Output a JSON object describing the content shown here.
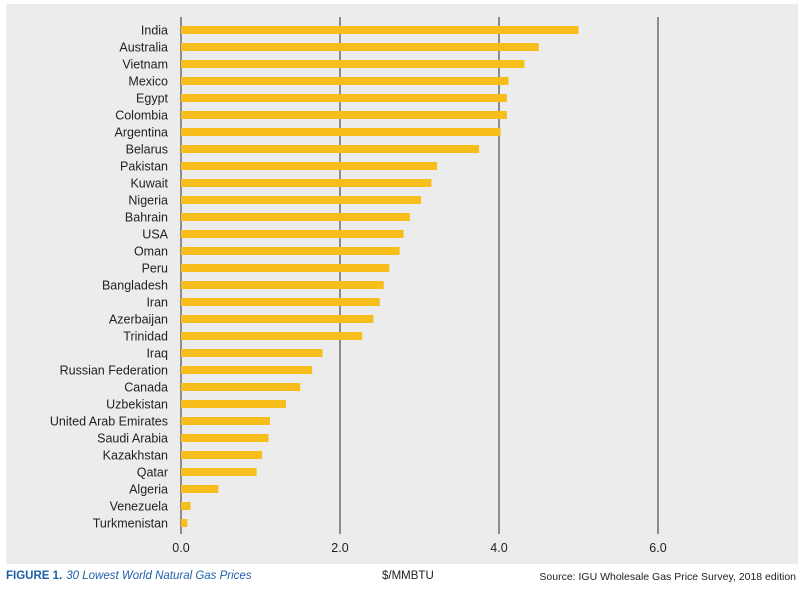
{
  "chart_data": {
    "type": "bar",
    "orientation": "horizontal",
    "categories": [
      "India",
      "Australia",
      "Vietnam",
      "Mexico",
      "Egypt",
      "Colombia",
      "Argentina",
      "Belarus",
      "Pakistan",
      "Kuwait",
      "Nigeria",
      "Bahrain",
      "USA",
      "Oman",
      "Peru",
      "Bangladesh",
      "Iran",
      "Azerbaijan",
      "Trinidad",
      "Iraq",
      "Russian Federation",
      "Canada",
      "Uzbekistan",
      "United Arab Emirates",
      "Saudi Arabia",
      "Kazakhstan",
      "Qatar",
      "Algeria",
      "Venezuela",
      "Turkmenistan"
    ],
    "values": [
      5.0,
      4.5,
      4.32,
      4.12,
      4.1,
      4.1,
      4.02,
      3.75,
      3.22,
      3.15,
      3.02,
      2.88,
      2.8,
      2.75,
      2.62,
      2.55,
      2.5,
      2.42,
      2.28,
      1.78,
      1.65,
      1.5,
      1.32,
      1.12,
      1.1,
      1.02,
      0.95,
      0.47,
      0.12,
      0.08
    ],
    "xlim": [
      0,
      7.0
    ],
    "xticks": [
      0.0,
      2.0,
      4.0,
      6.0
    ],
    "xtick_labels": [
      "0.0",
      "2.0",
      "4.0",
      "6.0"
    ],
    "xlabel": "$/MMBTU",
    "grid": "vertical",
    "bar_color": "#f7be1b"
  },
  "caption": {
    "figure_number": "FIGURE 1.",
    "figure_title": "30 Lowest World Natural Gas Prices"
  },
  "source": "Source: IGU Wholesale Gas Price Survey, 2018 edition"
}
